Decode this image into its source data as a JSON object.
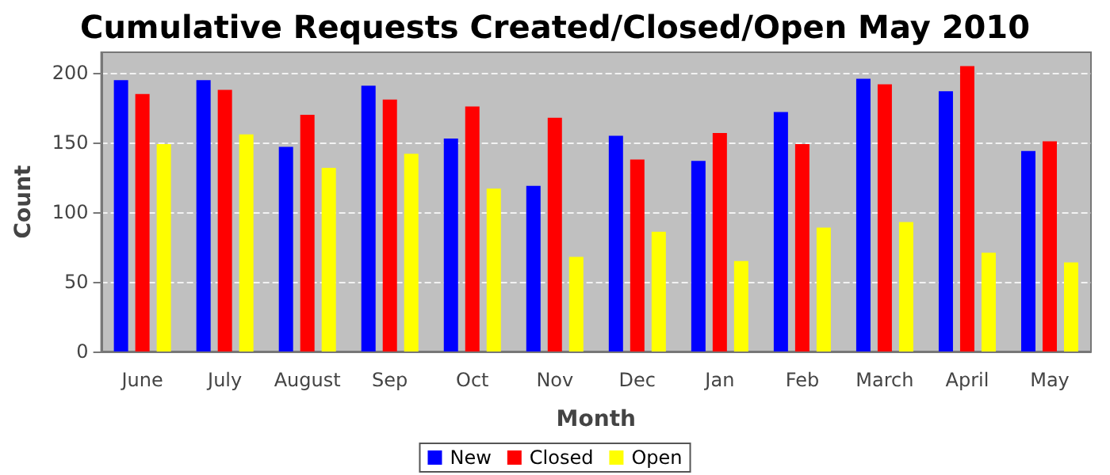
{
  "chart_data": {
    "type": "bar",
    "title": "Cumulative Requests Created/Closed/Open May 2010",
    "xlabel": "Month",
    "ylabel": "Count",
    "categories": [
      "June",
      "July",
      "August",
      "Sep",
      "Oct",
      "Nov",
      "Dec",
      "Jan",
      "Feb",
      "March",
      "April",
      "May"
    ],
    "series": [
      {
        "name": "New",
        "color": "#0000ff",
        "values": [
          195,
          195,
          147,
          191,
          153,
          119,
          155,
          137,
          172,
          196,
          187,
          144
        ]
      },
      {
        "name": "Closed",
        "color": "#ff0000",
        "values": [
          185,
          188,
          170,
          181,
          176,
          168,
          138,
          157,
          149,
          192,
          205,
          151
        ]
      },
      {
        "name": "Open",
        "color": "#ffff00",
        "values": [
          149,
          156,
          132,
          142,
          117,
          68,
          86,
          65,
          89,
          93,
          71,
          64
        ]
      }
    ],
    "ylim": [
      0,
      215
    ],
    "yticks": [
      0,
      50,
      100,
      150,
      200
    ],
    "grid": "y",
    "legend": "bottom"
  }
}
